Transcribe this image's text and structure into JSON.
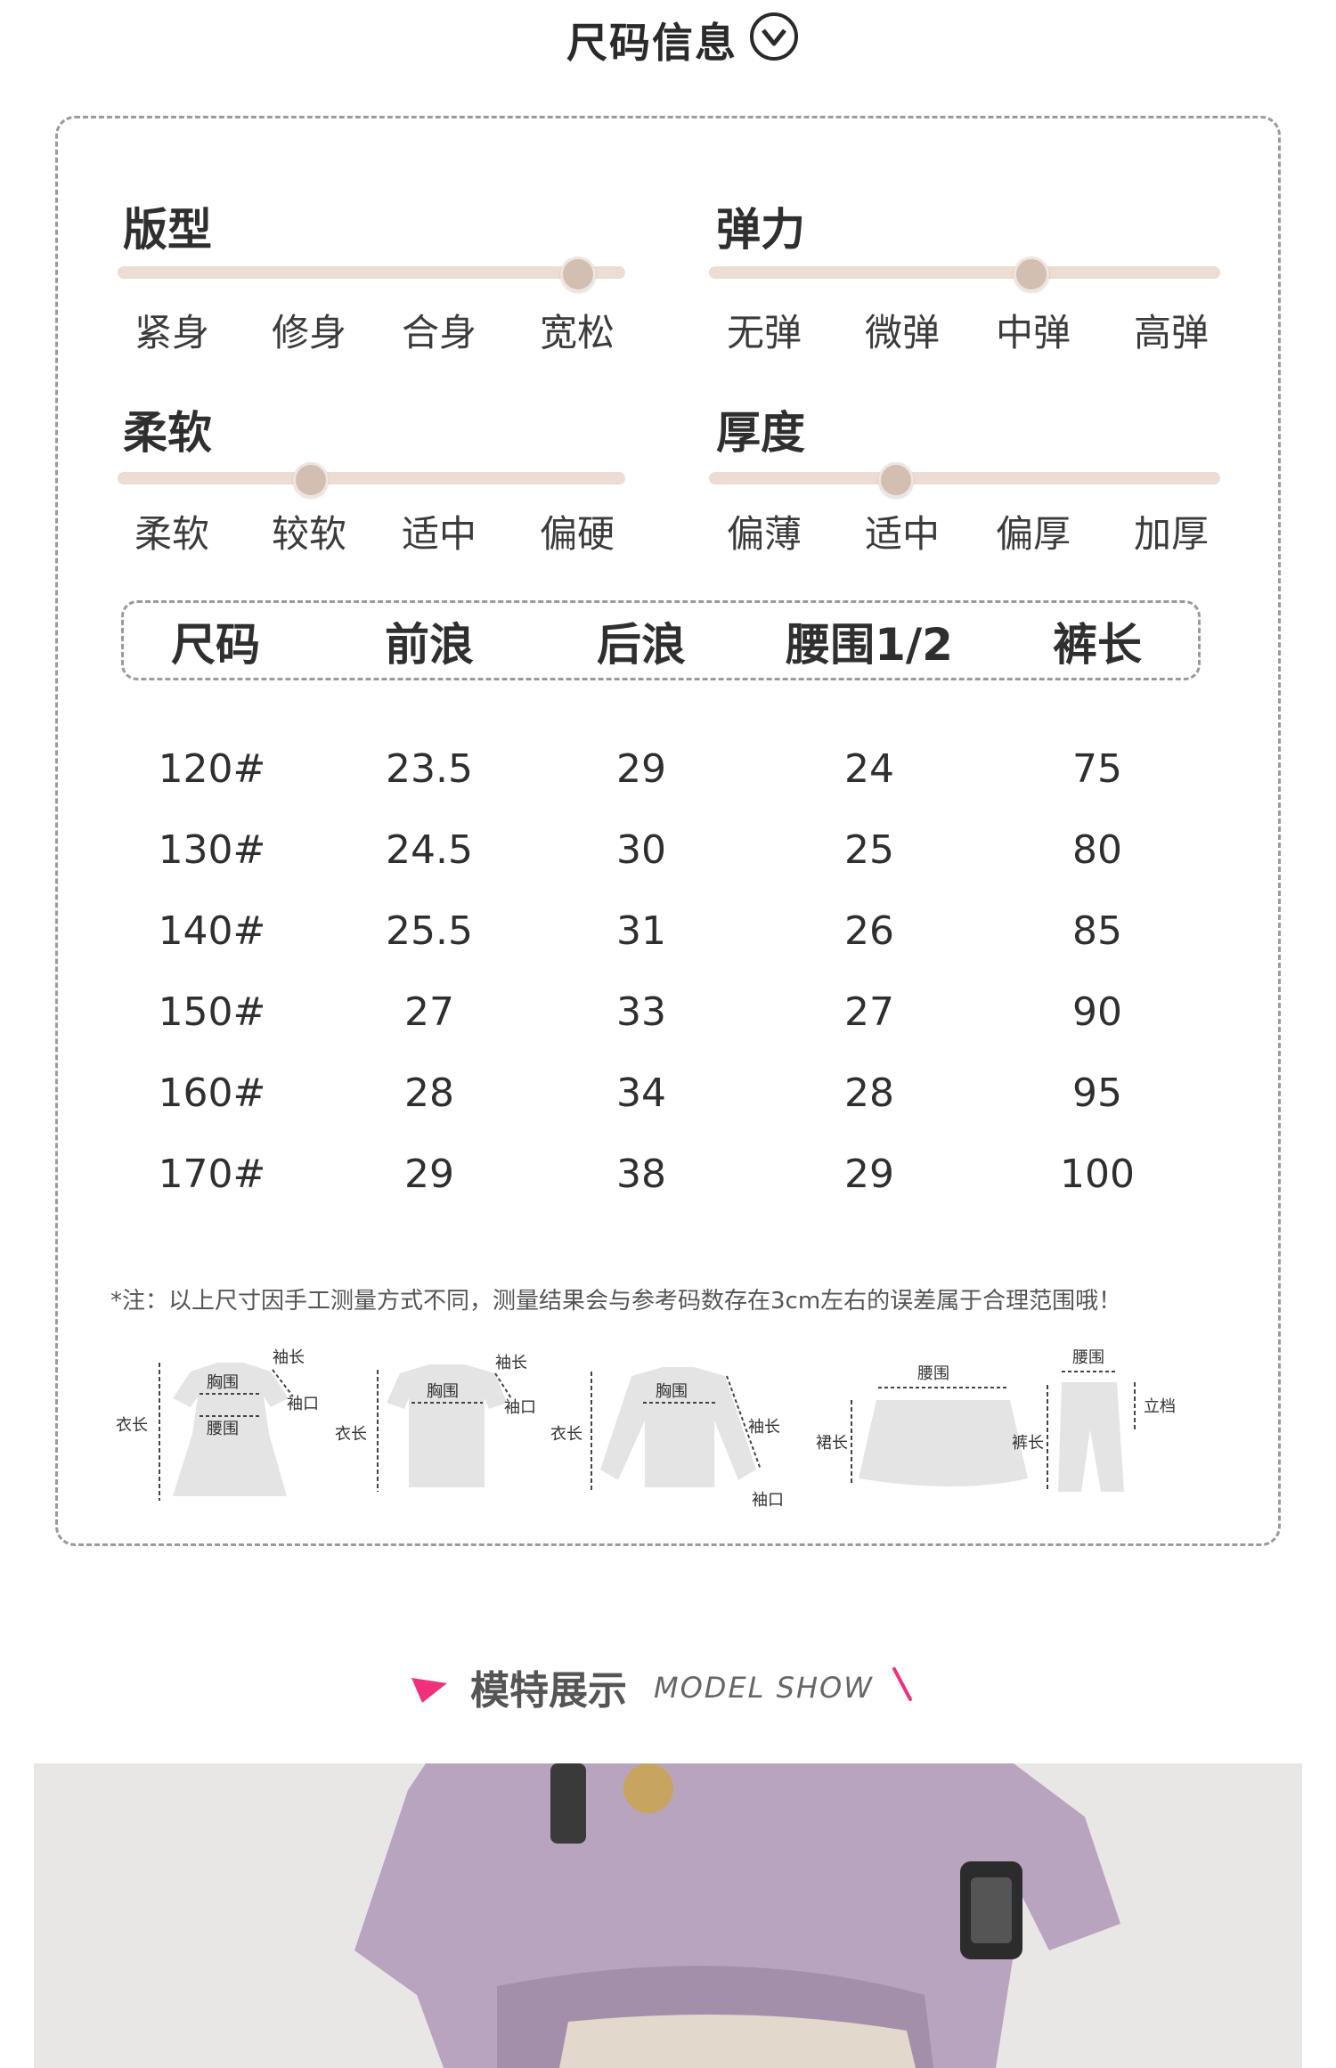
{
  "header": {
    "title": "尺码信息"
  },
  "attributes": {
    "fit": {
      "title": "版型",
      "options": [
        "紧身",
        "修身",
        "合身",
        "宽松"
      ],
      "selected_index": 3
    },
    "elasticity": {
      "title": "弹力",
      "options": [
        "无弹",
        "微弹",
        "中弹",
        "高弹"
      ],
      "selected_index": 2
    },
    "softness": {
      "title": "柔软",
      "options": [
        "柔软",
        "较软",
        "适中",
        "偏硬"
      ],
      "selected_index": 1
    },
    "thickness": {
      "title": "厚度",
      "options": [
        "偏薄",
        "适中",
        "偏厚",
        "加厚"
      ],
      "selected_index": 1
    }
  },
  "table": {
    "headers": [
      "尺码",
      "前浪",
      "后浪",
      "腰围1/2",
      "裤长"
    ],
    "rows": [
      [
        "120#",
        "23.5",
        "29",
        "24",
        "75"
      ],
      [
        "130#",
        "24.5",
        "30",
        "25",
        "80"
      ],
      [
        "140#",
        "25.5",
        "31",
        "26",
        "85"
      ],
      [
        "150#",
        "27",
        "33",
        "27",
        "90"
      ],
      [
        "160#",
        "28",
        "34",
        "28",
        "95"
      ],
      [
        "170#",
        "29",
        "38",
        "29",
        "100"
      ]
    ]
  },
  "note": "*注：以上尺寸因手工测量方式不同，测量结果会与参考码数存在3cm左右的误差属于合理范围哦！",
  "diagram_labels": {
    "dress": {
      "sleeve_length": "袖长",
      "chest": "胸围",
      "cuff": "袖口",
      "length": "衣长",
      "waist": "腰围"
    },
    "tshirt": {
      "sleeve_length": "袖长",
      "chest": "胸围",
      "cuff": "袖口",
      "length": "衣长"
    },
    "longsleeve": {
      "chest": "胸围",
      "sleeve_length": "袖长",
      "length": "衣长",
      "cuff": "袖口"
    },
    "skirt": {
      "waist": "腰围",
      "length": "裙长"
    },
    "pants": {
      "waist": "腰围",
      "rise": "立档",
      "length": "裤长"
    }
  },
  "model_show": {
    "title": "模特展示",
    "subtitle": "MODEL SHOW"
  },
  "colors": {
    "accent_pink": "#f0307a",
    "track": "#ecdcd1",
    "knob": "#d2bfb2",
    "garment": "#e4e4e4"
  }
}
